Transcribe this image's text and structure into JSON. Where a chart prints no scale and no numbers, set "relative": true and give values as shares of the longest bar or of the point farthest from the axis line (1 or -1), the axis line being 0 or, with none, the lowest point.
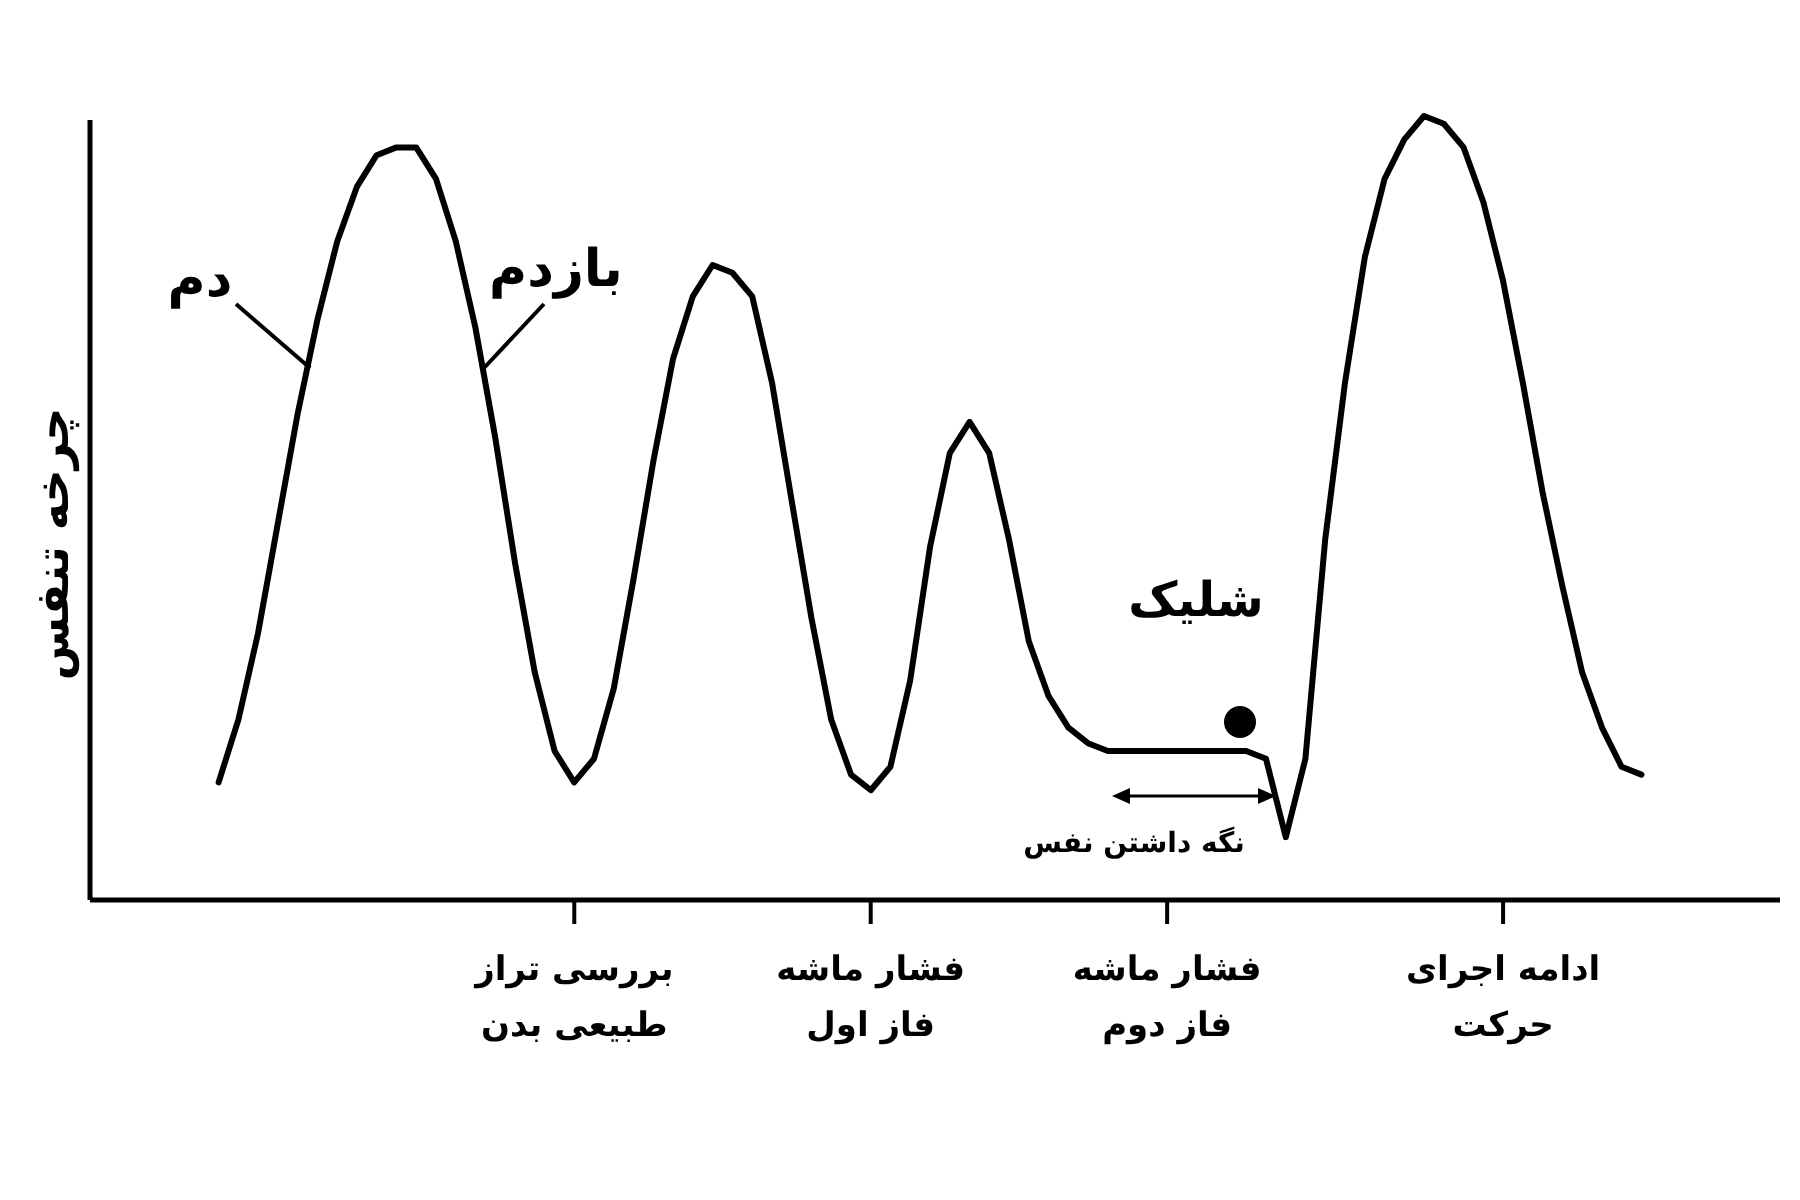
{
  "chart_data": {
    "type": "line",
    "relative": true,
    "ylabel": "چرخه تنفس",
    "categories": [
      null,
      null,
      null,
      null,
      null,
      null,
      null,
      null,
      null,
      null,
      null,
      null,
      null,
      null,
      null,
      null,
      null,
      null,
      null,
      null,
      null,
      null,
      null,
      null,
      "بررسی تراز\nطبیعی بدن",
      null,
      null,
      null,
      null,
      null,
      null,
      null,
      null,
      null,
      null,
      null,
      null,
      null,
      null,
      "فشار ماشه\nفاز اول",
      null,
      null,
      null,
      null,
      null,
      null,
      null,
      null,
      null,
      null,
      null,
      null,
      null,
      null,
      "فشار ماشه\nفاز دوم",
      null,
      null,
      null,
      null,
      null,
      null,
      null,
      null,
      null,
      null,
      null,
      null,
      null,
      null,
      null,
      null,
      "ادامه اجرای\nحرکت",
      null,
      null,
      null,
      null,
      null,
      null,
      null,
      null,
      null,
      null,
      null,
      null,
      null
    ],
    "series": [
      {
        "color": "#000000",
        "values": [
          null,
          null,
          null,
          null,
          null,
          null,
          0.15,
          0.23,
          0.34,
          0.48,
          0.62,
          0.74,
          0.84,
          0.91,
          0.95,
          0.96,
          0.96,
          0.92,
          0.84,
          0.73,
          0.59,
          0.43,
          0.29,
          0.19,
          0.15,
          0.18,
          0.27,
          0.41,
          0.56,
          0.69,
          0.77,
          0.81,
          0.8,
          0.77,
          0.66,
          0.51,
          0.36,
          0.23,
          0.16,
          0.14,
          0.17,
          0.28,
          0.45,
          0.57,
          0.61,
          0.57,
          0.46,
          0.33,
          0.26,
          0.22,
          0.2,
          0.19,
          0.19,
          0.19,
          0.19,
          0.19,
          0.19,
          0.19,
          0.19,
          0.18,
          0.08,
          0.18,
          0.46,
          0.66,
          0.82,
          0.92,
          0.97,
          1.0,
          0.99,
          0.96,
          0.89,
          0.79,
          0.66,
          0.52,
          0.4,
          0.29,
          0.22,
          0.17,
          0.16,
          null,
          null,
          null,
          null,
          null,
          null
        ]
      }
    ],
    "annotations": [
      "دم",
      "بازدم",
      "شلیک",
      "نگه داشتن نفس"
    ]
  }
}
